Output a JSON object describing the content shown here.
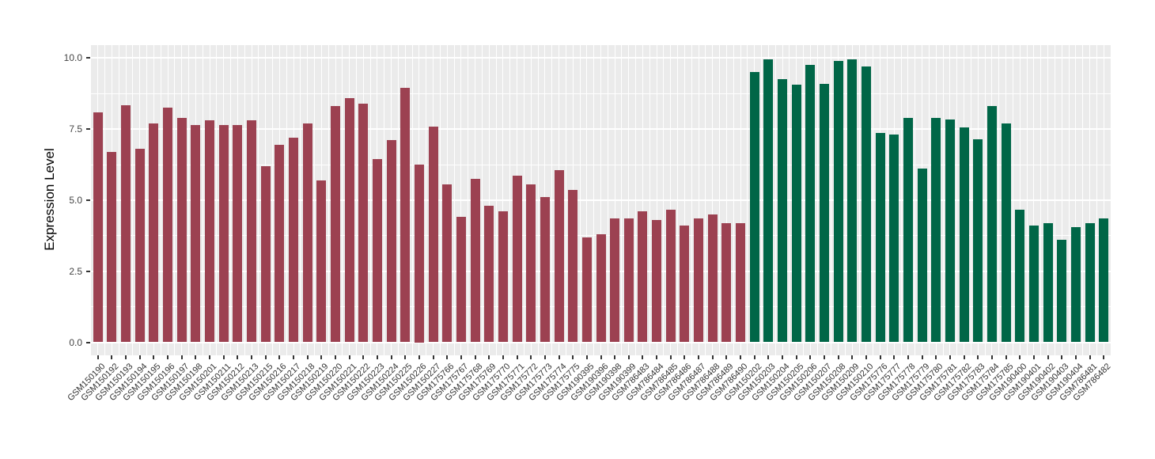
{
  "chart_data": {
    "type": "bar",
    "title": "",
    "ylabel": "Expression Level",
    "xlabel": "",
    "ylim": [
      0,
      10
    ],
    "ytick_labels": [
      "0.0",
      "2.5",
      "5.0",
      "7.5",
      "10.0"
    ],
    "ytick_values": [
      0,
      2.5,
      5,
      7.5,
      10
    ],
    "yminor_values": [
      1.25,
      3.75,
      6.25,
      8.75
    ],
    "grid": "white major+minor gridlines on gray panel",
    "legend_position": "none",
    "groups": [
      {
        "name": "group-1-red",
        "color": "#9C4151"
      },
      {
        "name": "group-2-green",
        "color": "#006647"
      }
    ],
    "bars": [
      {
        "label": "GSM150190",
        "value": 8.1,
        "group": 0
      },
      {
        "label": "GSM150192",
        "value": 6.7,
        "group": 0
      },
      {
        "label": "GSM150193",
        "value": 8.35,
        "group": 0
      },
      {
        "label": "GSM150194",
        "value": 6.8,
        "group": 0
      },
      {
        "label": "GSM150195",
        "value": 7.7,
        "group": 0
      },
      {
        "label": "GSM150196",
        "value": 8.25,
        "group": 0
      },
      {
        "label": "GSM150197",
        "value": 7.9,
        "group": 0
      },
      {
        "label": "GSM150198",
        "value": 7.65,
        "group": 0
      },
      {
        "label": "GSM150201",
        "value": 7.8,
        "group": 0
      },
      {
        "label": "GSM150211",
        "value": 7.65,
        "group": 0
      },
      {
        "label": "GSM150212",
        "value": 7.65,
        "group": 0
      },
      {
        "label": "GSM150213",
        "value": 7.8,
        "group": 0
      },
      {
        "label": "GSM150215",
        "value": 6.2,
        "group": 0
      },
      {
        "label": "GSM150216",
        "value": 6.95,
        "group": 0
      },
      {
        "label": "GSM150217",
        "value": 7.2,
        "group": 0
      },
      {
        "label": "GSM150218",
        "value": 7.7,
        "group": 0
      },
      {
        "label": "GSM150219",
        "value": 5.7,
        "group": 0
      },
      {
        "label": "GSM150220",
        "value": 8.3,
        "group": 0
      },
      {
        "label": "GSM150221",
        "value": 8.6,
        "group": 0
      },
      {
        "label": "GSM150222",
        "value": 8.4,
        "group": 0
      },
      {
        "label": "GSM150223",
        "value": 6.45,
        "group": 0
      },
      {
        "label": "GSM150224",
        "value": 7.1,
        "group": 0
      },
      {
        "label": "GSM150225",
        "value": 8.95,
        "group": 0
      },
      {
        "label": "GSM150226",
        "value": 6.25,
        "group": 0
      },
      {
        "label": "GSM150227",
        "value": 7.6,
        "group": 0
      },
      {
        "label": "GSM175766",
        "value": 5.55,
        "group": 0
      },
      {
        "label": "GSM175767",
        "value": 4.4,
        "group": 0
      },
      {
        "label": "GSM175768",
        "value": 5.75,
        "group": 0
      },
      {
        "label": "GSM175769",
        "value": 4.8,
        "group": 0
      },
      {
        "label": "GSM175770",
        "value": 4.6,
        "group": 0
      },
      {
        "label": "GSM175771",
        "value": 5.85,
        "group": 0
      },
      {
        "label": "GSM175772",
        "value": 5.55,
        "group": 0
      },
      {
        "label": "GSM175773",
        "value": 5.1,
        "group": 0
      },
      {
        "label": "GSM175774",
        "value": 6.05,
        "group": 0
      },
      {
        "label": "GSM175775",
        "value": 5.35,
        "group": 0
      },
      {
        "label": "GSM190395",
        "value": 3.7,
        "group": 0
      },
      {
        "label": "GSM190396",
        "value": 3.8,
        "group": 0
      },
      {
        "label": "GSM190398",
        "value": 4.35,
        "group": 0
      },
      {
        "label": "GSM190399",
        "value": 4.35,
        "group": 0
      },
      {
        "label": "GSM786483",
        "value": 4.6,
        "group": 0
      },
      {
        "label": "GSM786484",
        "value": 4.3,
        "group": 0
      },
      {
        "label": "GSM786485",
        "value": 4.65,
        "group": 0
      },
      {
        "label": "GSM786486",
        "value": 4.1,
        "group": 0
      },
      {
        "label": "GSM786487",
        "value": 4.35,
        "group": 0
      },
      {
        "label": "GSM786488",
        "value": 4.5,
        "group": 0
      },
      {
        "label": "GSM786489",
        "value": 4.2,
        "group": 0
      },
      {
        "label": "GSM786490",
        "value": 4.2,
        "group": 0
      },
      {
        "label": "GSM150202",
        "value": 9.5,
        "group": 1
      },
      {
        "label": "GSM150203",
        "value": 9.95,
        "group": 1
      },
      {
        "label": "GSM150204",
        "value": 9.25,
        "group": 1
      },
      {
        "label": "GSM150205",
        "value": 9.05,
        "group": 1
      },
      {
        "label": "GSM150206",
        "value": 9.75,
        "group": 1
      },
      {
        "label": "GSM150207",
        "value": 9.1,
        "group": 1
      },
      {
        "label": "GSM150208",
        "value": 9.9,
        "group": 1
      },
      {
        "label": "GSM150209",
        "value": 9.95,
        "group": 1
      },
      {
        "label": "GSM150210",
        "value": 9.7,
        "group": 1
      },
      {
        "label": "GSM175776",
        "value": 7.35,
        "group": 1
      },
      {
        "label": "GSM175777",
        "value": 7.3,
        "group": 1
      },
      {
        "label": "GSM175778",
        "value": 7.9,
        "group": 1
      },
      {
        "label": "GSM175779",
        "value": 6.1,
        "group": 1
      },
      {
        "label": "GSM175780",
        "value": 7.9,
        "group": 1
      },
      {
        "label": "GSM175781",
        "value": 7.85,
        "group": 1
      },
      {
        "label": "GSM175782",
        "value": 7.55,
        "group": 1
      },
      {
        "label": "GSM175783",
        "value": 7.15,
        "group": 1
      },
      {
        "label": "GSM175784",
        "value": 8.3,
        "group": 1
      },
      {
        "label": "GSM175785",
        "value": 7.7,
        "group": 1
      },
      {
        "label": "GSM190400",
        "value": 4.65,
        "group": 1
      },
      {
        "label": "GSM190401",
        "value": 4.1,
        "group": 1
      },
      {
        "label": "GSM190402",
        "value": 4.2,
        "group": 1
      },
      {
        "label": "GSM190403",
        "value": 3.6,
        "group": 1
      },
      {
        "label": "GSM190404",
        "value": 4.05,
        "group": 1
      },
      {
        "label": "GSM786481",
        "value": 4.2,
        "group": 1
      },
      {
        "label": "GSM786482",
        "value": 4.35,
        "group": 1
      }
    ]
  },
  "colors": {
    "panel_bg": "#EBEBEB",
    "grid": "#FFFFFF",
    "axis_text": "#444444",
    "tick_mark": "#333333"
  }
}
